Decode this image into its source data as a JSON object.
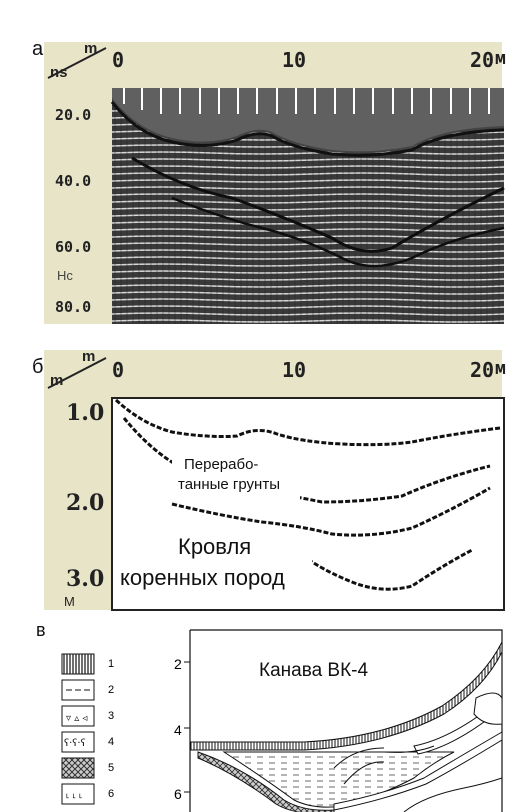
{
  "panels": {
    "a": {
      "label": "а",
      "axis_units": {
        "distance": "m",
        "time": "ns"
      },
      "x_ticks": [
        "0",
        "10",
        "20"
      ],
      "x_unit_end": "м",
      "y_ticks": [
        "20.0",
        "40.0",
        "60.0",
        "80.0"
      ],
      "y_unit": "Нс"
    },
    "b": {
      "label": "б",
      "axis_units": {
        "distance": "m",
        "depth": "m"
      },
      "x_ticks": [
        "0",
        "10",
        "20"
      ],
      "x_unit_end": "м",
      "y_ticks": [
        "1.0",
        "2.0",
        "3.0"
      ],
      "y_unit": "М",
      "annotation_1_line1": "Перерабо-",
      "annotation_1_line2": "танные грунты",
      "annotation_2_line1": "Кровля",
      "annotation_2_line2": "коренных пород"
    },
    "c": {
      "label": "в",
      "title": "Канава ВК-4",
      "y_ticks": [
        "2",
        "4",
        "6"
      ],
      "legend": [
        "1",
        "2",
        "3",
        "4",
        "5",
        "6"
      ]
    }
  },
  "colors": {
    "radargram_dark": "#2a2a2a",
    "ruler": "#e8e4c8",
    "ink": "#111111"
  }
}
